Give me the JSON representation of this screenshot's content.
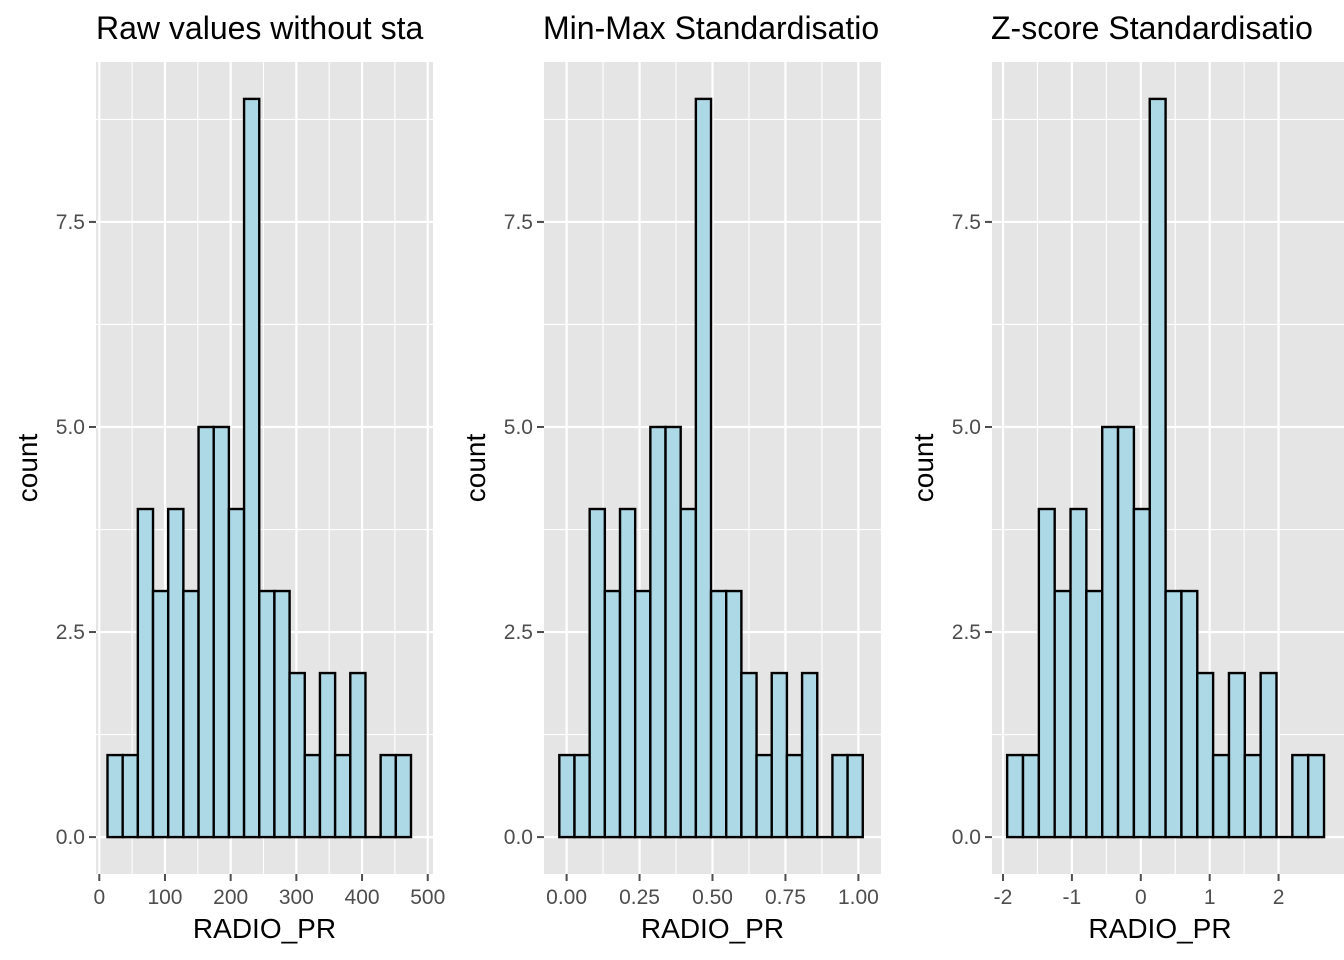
{
  "colors": {
    "panel_bg": "#e5e5e5",
    "grid": "#ffffff",
    "bar_fill": "#add8e6",
    "bar_stroke": "#000000",
    "tick": "#4d4d4d",
    "text": "#000000"
  },
  "chart_data": [
    {
      "type": "bar",
      "title": "Raw values without sta",
      "xlabel": "RADIO_PR",
      "ylabel": "count",
      "xlim": [
        -5,
        508
      ],
      "ylim": [
        -0.45,
        9.45
      ],
      "grid": true,
      "bins": {
        "start": 12.5,
        "width": 23.1,
        "counts": [
          1,
          1,
          4,
          3,
          4,
          3,
          5,
          5,
          4,
          9,
          3,
          3,
          2,
          1,
          2,
          1,
          2,
          0,
          1,
          1
        ]
      },
      "x_ticks": [
        0,
        100,
        200,
        300,
        400,
        500
      ],
      "x_tick_labels": [
        "0",
        "100",
        "200",
        "300",
        "400",
        "500"
      ],
      "y_ticks": [
        0,
        2.5,
        5,
        7.5
      ],
      "y_tick_labels": [
        "0.0",
        "2.5",
        "5.0",
        "7.5"
      ]
    },
    {
      "type": "bar",
      "title": "Min-Max Standardisatio",
      "xlabel": "RADIO_PR",
      "ylabel": "count",
      "xlim": [
        -0.0775,
        1.0775
      ],
      "ylim": [
        -0.45,
        9.45
      ],
      "grid": true,
      "bins": {
        "start": -0.025,
        "width": 0.052,
        "counts": [
          1,
          1,
          4,
          3,
          4,
          3,
          5,
          5,
          4,
          9,
          3,
          3,
          2,
          1,
          2,
          1,
          2,
          0,
          1,
          1
        ]
      },
      "x_ticks": [
        0,
        0.25,
        0.5,
        0.75,
        1
      ],
      "x_tick_labels": [
        "0.00",
        "0.25",
        "0.50",
        "0.75",
        "1.00"
      ],
      "y_ticks": [
        0,
        2.5,
        5,
        7.5
      ],
      "y_tick_labels": [
        "0.0",
        "2.5",
        "5.0",
        "7.5"
      ]
    },
    {
      "type": "bar",
      "title": "Z-score Standardisatio",
      "xlabel": "RADIO_PR",
      "ylabel": "count",
      "xlim": [
        -2.16,
        2.95
      ],
      "ylim": [
        -0.45,
        9.45
      ],
      "grid": true,
      "bins": {
        "start": -1.94,
        "width": 0.23,
        "counts": [
          1,
          1,
          4,
          3,
          4,
          3,
          5,
          5,
          4,
          9,
          3,
          3,
          2,
          1,
          2,
          1,
          2,
          0,
          1,
          1
        ]
      },
      "x_ticks": [
        -2,
        -1,
        0,
        1,
        2
      ],
      "x_tick_labels": [
        "-2",
        "-1",
        "0",
        "1",
        "2"
      ],
      "y_ticks": [
        0,
        2.5,
        5,
        7.5
      ],
      "y_tick_labels": [
        "0.0",
        "2.5",
        "5.0",
        "7.5"
      ]
    }
  ]
}
